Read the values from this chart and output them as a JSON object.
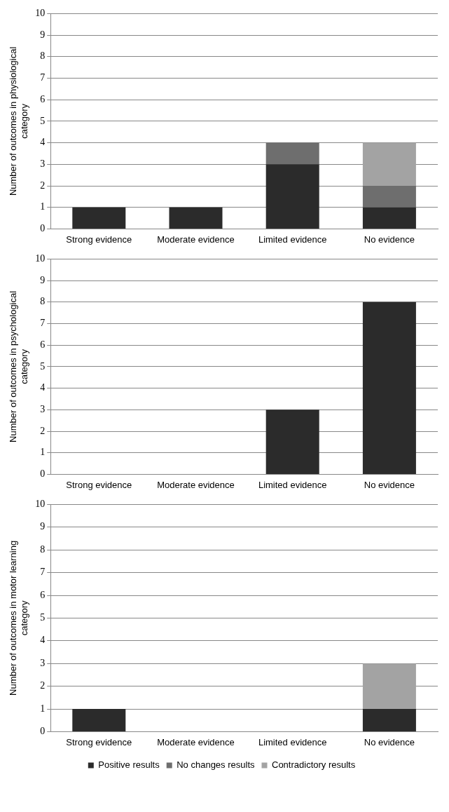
{
  "chart_data": [
    {
      "type": "bar",
      "stacked": true,
      "ylabel": "Number of outcomes in physiological category",
      "categories": [
        "Strong evidence",
        "Moderate evidence",
        "Limited evidence",
        "No evidence"
      ],
      "ylim": [
        0,
        10
      ],
      "yticks": [
        0,
        1,
        2,
        3,
        4,
        5,
        6,
        7,
        8,
        9,
        10
      ],
      "grid": "y",
      "legend": false,
      "series": [
        {
          "color": "#2b2b2b",
          "values": [
            1,
            1,
            3,
            1
          ]
        },
        {
          "color": "#6e6e6e",
          "values": [
            0,
            0,
            1,
            1
          ]
        },
        {
          "color": "#a3a3a3",
          "values": [
            0,
            0,
            0,
            2
          ]
        }
      ]
    },
    {
      "type": "bar",
      "stacked": true,
      "ylabel": "Number of outcomes in psychological category",
      "categories": [
        "Strong evidence",
        "Moderate evidence",
        "Limited evidence",
        "No evidence"
      ],
      "ylim": [
        0,
        10
      ],
      "yticks": [
        0,
        1,
        2,
        3,
        4,
        5,
        6,
        7,
        8,
        9,
        10
      ],
      "grid": "y",
      "legend": false,
      "series": [
        {
          "color": "#2b2b2b",
          "values": [
            0,
            0,
            3,
            8
          ]
        }
      ]
    },
    {
      "type": "bar",
      "stacked": true,
      "ylabel": "Number of outcomes in motor learning category",
      "categories": [
        "Strong evidence",
        "Moderate evidence",
        "Limited evidence",
        "No evidence"
      ],
      "ylim": [
        0,
        10
      ],
      "yticks": [
        0,
        1,
        2,
        3,
        4,
        5,
        6,
        7,
        8,
        9,
        10
      ],
      "grid": "y",
      "legend": "bottom",
      "series": [
        {
          "name": "Positive results",
          "color": "#2b2b2b",
          "values": [
            1,
            0,
            0,
            1
          ]
        },
        {
          "name": "No changes results",
          "color": "#6e6e6e",
          "values": [
            0,
            0,
            0,
            0
          ]
        },
        {
          "name": "Contradictory results",
          "color": "#a3a3a3",
          "values": [
            0,
            0,
            0,
            2
          ]
        }
      ]
    }
  ]
}
